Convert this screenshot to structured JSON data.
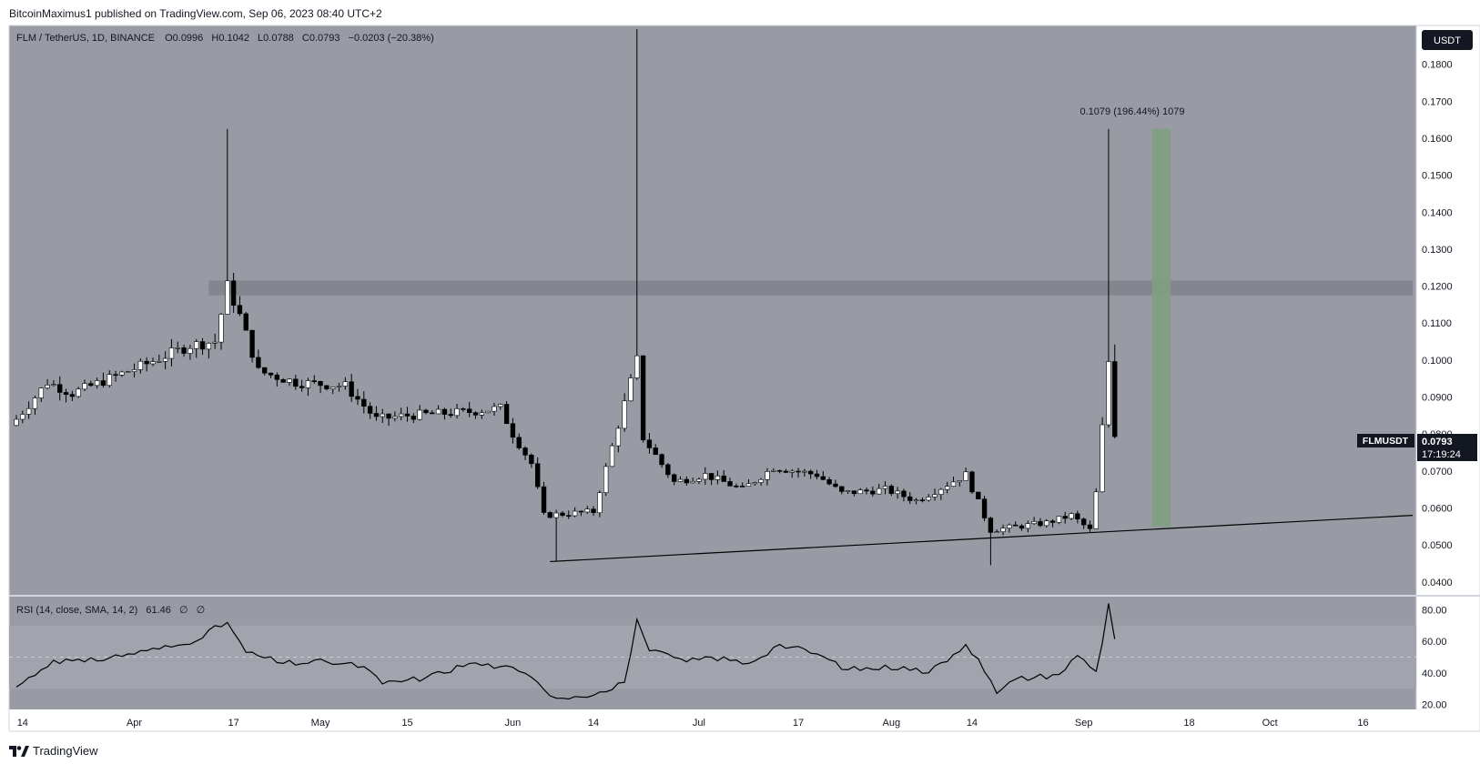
{
  "header": {
    "published_by": "BitcoinMaximus1 published on TradingView.com, Sep 06, 2023 08:40 UTC+2"
  },
  "legend": {
    "symbol": "FLM / TetherUS, 1D, BINANCE",
    "o_label": "O",
    "o_value": "0.0996",
    "h_label": "H",
    "h_value": "0.1042",
    "l_label": "L",
    "l_value": "0.0788",
    "c_label": "C",
    "c_value": "0.0793",
    "change": "−0.0203 (−20.38%)"
  },
  "currency_badge": "USDT",
  "price_label": {
    "symbol": "FLMUSDT",
    "price": "0.0793",
    "countdown": "17:19:24"
  },
  "measure_label": "0.1079 (196.44%) 1079",
  "rsi_legend": {
    "title": "RSI (14, close, SMA, 14, 2)",
    "value": "61.46",
    "extra1": "∅",
    "extra2": "∅"
  },
  "footer": {
    "brand": "TradingView"
  },
  "colors": {
    "pane_bg": "#989ba4",
    "axis_bg": "#ffffff",
    "candle_up": "#ffffff",
    "candle_down": "#000000",
    "wick": "#000000",
    "resistance_zone": "#80838c",
    "target_zone": "#7fa07f",
    "rsi_band": "#a2a5ad",
    "line": "#000000"
  },
  "chart_data": [
    {
      "type": "candlestick",
      "symbol": "FLMUSDT",
      "interval": "1D",
      "ylim": [
        0.037,
        0.19
      ],
      "y_ticks": [
        "0.0400",
        "0.0500",
        "0.0600",
        "0.0700",
        "0.0800",
        "0.0900",
        "0.1000",
        "0.1100",
        "0.1200",
        "0.1300",
        "0.1400",
        "0.1500",
        "0.1600",
        "0.1700",
        "0.1800"
      ],
      "x_ticks": [
        "14",
        "Apr",
        "17",
        "May",
        "15",
        "Jun",
        "14",
        "Jul",
        "17",
        "Aug",
        "14",
        "Sep",
        "18",
        "Oct",
        "16"
      ],
      "x_range": [
        "2023-03-13",
        "2023-10-24"
      ],
      "scale": "linear",
      "anchors": [
        {
          "date": "2023-03-13",
          "close": 0.084
        },
        {
          "date": "2023-03-18",
          "close": 0.094
        },
        {
          "date": "2023-03-22",
          "close": 0.091
        },
        {
          "date": "2023-03-28",
          "close": 0.095
        },
        {
          "date": "2023-04-03",
          "close": 0.099
        },
        {
          "date": "2023-04-10",
          "close": 0.104
        },
        {
          "date": "2023-04-14",
          "close": 0.105
        },
        {
          "date": "2023-04-16",
          "close": 0.12
        },
        {
          "date": "2023-04-18",
          "close": 0.112
        },
        {
          "date": "2023-04-21",
          "close": 0.097
        },
        {
          "date": "2023-04-27",
          "close": 0.094
        },
        {
          "date": "2023-05-05",
          "close": 0.093
        },
        {
          "date": "2023-05-10",
          "close": 0.084
        },
        {
          "date": "2023-05-15",
          "close": 0.085
        },
        {
          "date": "2023-05-25",
          "close": 0.086
        },
        {
          "date": "2023-05-30",
          "close": 0.087
        },
        {
          "date": "2023-06-01",
          "close": 0.08
        },
        {
          "date": "2023-06-04",
          "close": 0.072
        },
        {
          "date": "2023-06-06",
          "close": 0.058
        },
        {
          "date": "2023-06-14",
          "close": 0.059
        },
        {
          "date": "2023-06-21",
          "close": 0.1
        },
        {
          "date": "2023-06-22",
          "close": 0.079
        },
        {
          "date": "2023-06-27",
          "close": 0.067
        },
        {
          "date": "2023-07-02",
          "close": 0.069
        },
        {
          "date": "2023-07-08",
          "close": 0.065
        },
        {
          "date": "2023-07-13",
          "close": 0.071
        },
        {
          "date": "2023-07-20",
          "close": 0.069
        },
        {
          "date": "2023-07-24",
          "close": 0.064
        },
        {
          "date": "2023-07-31",
          "close": 0.065
        },
        {
          "date": "2023-08-05",
          "close": 0.062
        },
        {
          "date": "2023-08-13",
          "close": 0.069
        },
        {
          "date": "2023-08-17",
          "close": 0.054
        },
        {
          "date": "2023-08-26",
          "close": 0.056
        },
        {
          "date": "2023-08-30",
          "close": 0.058
        },
        {
          "date": "2023-09-02",
          "close": 0.054
        },
        {
          "date": "2023-09-03",
          "close": 0.064
        },
        {
          "date": "2023-09-05",
          "close": 0.0996
        },
        {
          "date": "2023-09-06",
          "close": 0.0793
        }
      ],
      "notable_candles": [
        {
          "date": "2023-04-16",
          "high": 0.1625
        },
        {
          "date": "2023-06-21",
          "high": 0.1895
        },
        {
          "date": "2023-09-05",
          "high": 0.1625
        },
        {
          "date": "2023-09-06",
          "open": 0.0996,
          "high": 0.1042,
          "low": 0.0788,
          "close": 0.0793
        }
      ],
      "annotations": {
        "resistance_zone": [
          0.1175,
          0.1215
        ],
        "ascending_support": [
          {
            "date": "2023-06-07",
            "price": 0.0455
          },
          {
            "date": "2023-10-24",
            "price": 0.058
          }
        ],
        "target_zone": {
          "from": "2023-09-12",
          "to": "2023-09-15",
          "price_range": [
            0.055,
            0.1625
          ]
        },
        "measure": {
          "value": 0.1079,
          "percent": 196.44,
          "ticks": 1079
        }
      }
    },
    {
      "type": "line",
      "name": "RSI (14, close, SMA, 14, 2)",
      "ylim": [
        18,
        86
      ],
      "y_ticks": [
        "20.00",
        "40.00",
        "60.00",
        "80.00"
      ],
      "band": [
        30,
        70
      ],
      "midline": 50,
      "last_value": 61.46,
      "points": [
        {
          "date": "2023-03-13",
          "v": 31
        },
        {
          "date": "2023-03-19",
          "v": 48
        },
        {
          "date": "2023-03-24",
          "v": 47
        },
        {
          "date": "2023-04-03",
          "v": 54
        },
        {
          "date": "2023-04-09",
          "v": 58
        },
        {
          "date": "2023-04-16",
          "v": 72
        },
        {
          "date": "2023-04-19",
          "v": 53
        },
        {
          "date": "2023-04-25",
          "v": 46
        },
        {
          "date": "2023-05-02",
          "v": 47
        },
        {
          "date": "2023-05-08",
          "v": 44
        },
        {
          "date": "2023-05-11",
          "v": 33
        },
        {
          "date": "2023-05-18",
          "v": 37
        },
        {
          "date": "2023-05-25",
          "v": 46
        },
        {
          "date": "2023-05-30",
          "v": 44
        },
        {
          "date": "2023-06-02",
          "v": 41
        },
        {
          "date": "2023-06-05",
          "v": 34
        },
        {
          "date": "2023-06-08",
          "v": 24
        },
        {
          "date": "2023-06-16",
          "v": 28
        },
        {
          "date": "2023-06-19",
          "v": 34
        },
        {
          "date": "2023-06-21",
          "v": 74
        },
        {
          "date": "2023-06-23",
          "v": 54
        },
        {
          "date": "2023-06-29",
          "v": 47
        },
        {
          "date": "2023-07-03",
          "v": 50
        },
        {
          "date": "2023-07-09",
          "v": 46
        },
        {
          "date": "2023-07-14",
          "v": 58
        },
        {
          "date": "2023-07-20",
          "v": 52
        },
        {
          "date": "2023-07-25",
          "v": 42
        },
        {
          "date": "2023-08-03",
          "v": 44
        },
        {
          "date": "2023-08-07",
          "v": 40
        },
        {
          "date": "2023-08-13",
          "v": 58
        },
        {
          "date": "2023-08-15",
          "v": 49
        },
        {
          "date": "2023-08-18",
          "v": 27
        },
        {
          "date": "2023-08-21",
          "v": 36
        },
        {
          "date": "2023-08-28",
          "v": 39
        },
        {
          "date": "2023-08-31",
          "v": 51
        },
        {
          "date": "2023-09-03",
          "v": 41
        },
        {
          "date": "2023-09-04",
          "v": 59
        },
        {
          "date": "2023-09-05",
          "v": 84
        },
        {
          "date": "2023-09-06",
          "v": 61.46
        }
      ]
    }
  ]
}
